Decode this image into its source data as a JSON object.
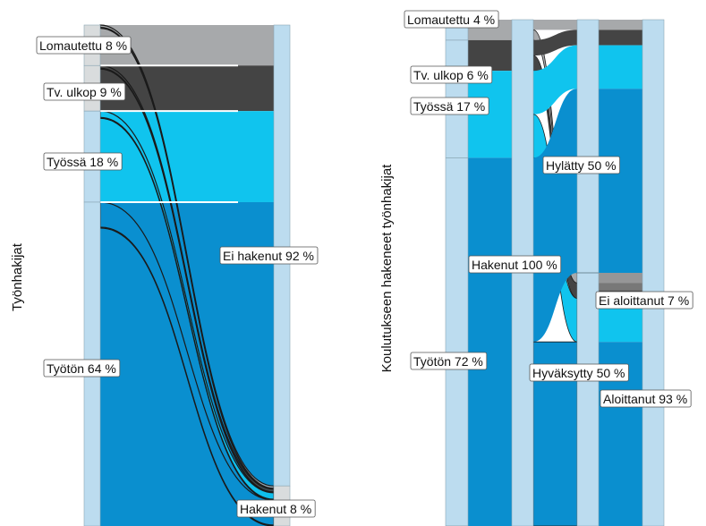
{
  "colors": {
    "lomautettu": "#a7a9ab",
    "tv_ulkop": "#444444",
    "tyossa": "#10c4ee",
    "tyoton": "#0a8fcf",
    "node_light": "#bcdcef",
    "node_grey": "#d9dcdd"
  },
  "chart_data": [
    {
      "type": "sankey",
      "ylabel": "Työnhakijat",
      "stages": [
        [
          {
            "name": "Lomautettu",
            "pct": 8,
            "label": "Lomautettu 8 %"
          },
          {
            "name": "Tv. ulkop",
            "pct": 9,
            "label": "Tv. ulkop 9 %"
          },
          {
            "name": "Työssä",
            "pct": 18,
            "label": "Työssä 18 %"
          },
          {
            "name": "Työtön",
            "pct": 64,
            "label": "Työtön 64 %"
          }
        ],
        [
          {
            "name": "Ei hakenut",
            "pct": 92,
            "label": "Ei hakenut 92 %"
          },
          {
            "name": "Hakenut",
            "pct": 8,
            "label": "Hakenut 8 %"
          }
        ]
      ],
      "flows": [
        {
          "from": "Lomautettu",
          "to": "Ei hakenut"
        },
        {
          "from": "Lomautettu",
          "to": "Hakenut"
        },
        {
          "from": "Tv. ulkop",
          "to": "Ei hakenut"
        },
        {
          "from": "Tv. ulkop",
          "to": "Hakenut"
        },
        {
          "from": "Työssä",
          "to": "Ei hakenut"
        },
        {
          "from": "Työssä",
          "to": "Hakenut"
        },
        {
          "from": "Työtön",
          "to": "Ei hakenut"
        },
        {
          "from": "Työtön",
          "to": "Hakenut"
        }
      ]
    },
    {
      "type": "sankey",
      "ylabel": "Koulutukseen hakeneet työnhakijat",
      "stages": [
        [
          {
            "name": "Lomautettu",
            "pct": 4,
            "label": "Lomautettu 4 %"
          },
          {
            "name": "Tv. ulkop",
            "pct": 6,
            "label": "Tv. ulkop 6 %"
          },
          {
            "name": "Työssä",
            "pct": 17,
            "label": "Työssä 17 %"
          },
          {
            "name": "Työtön",
            "pct": 72,
            "label": "Työtön 72 %"
          }
        ],
        [
          {
            "name": "Hakenut",
            "pct": 100,
            "label": "Hakenut 100 %"
          }
        ],
        [
          {
            "name": "Hylätty",
            "pct": 50,
            "label": "Hylätty 50 %"
          },
          {
            "name": "Hyväksytty",
            "pct": 50,
            "label": "Hyväksytty 50 %"
          }
        ],
        [
          {
            "name": "Ei aloittanut",
            "pct": 7,
            "label": "Ei aloittanut 7 %"
          },
          {
            "name": "Aloittanut",
            "pct": 93,
            "label": "Aloittanut 93 %"
          }
        ]
      ]
    }
  ]
}
